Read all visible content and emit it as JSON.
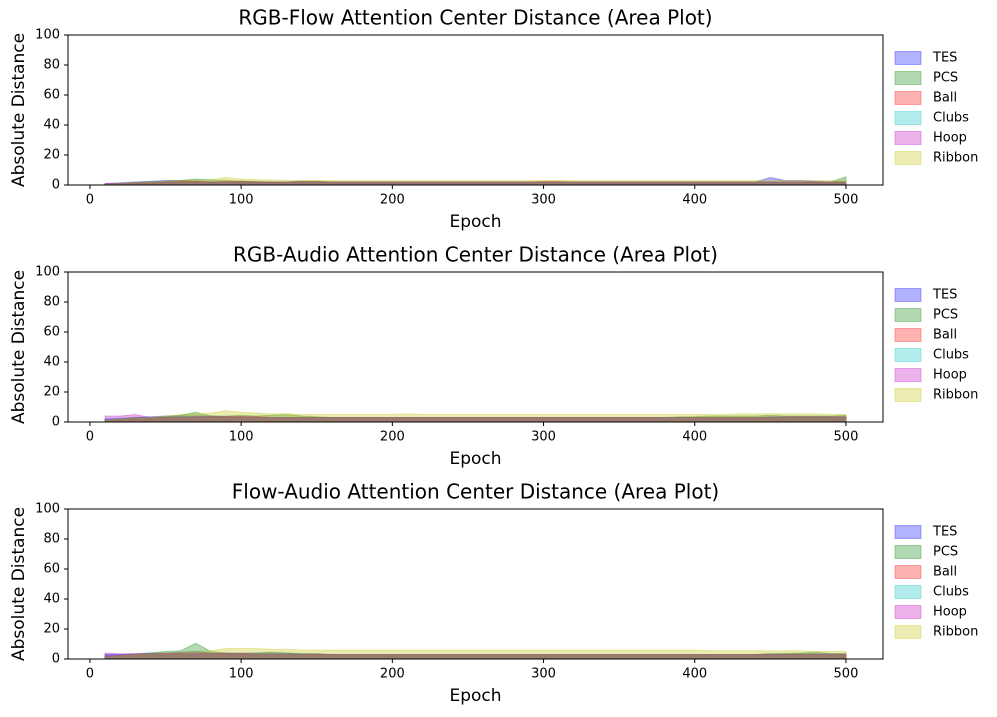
{
  "chart_data": [
    {
      "type": "area",
      "title": "RGB-Flow Attention Center Distance (Area Plot)",
      "x_label": "Epoch",
      "y_label": "Absolute Distance",
      "x": [
        10,
        20,
        30,
        40,
        50,
        60,
        70,
        80,
        90,
        100,
        110,
        120,
        130,
        140,
        150,
        160,
        170,
        180,
        190,
        200,
        210,
        220,
        230,
        240,
        250,
        260,
        270,
        280,
        290,
        300,
        310,
        320,
        330,
        340,
        350,
        360,
        370,
        380,
        390,
        400,
        410,
        420,
        430,
        440,
        450,
        460,
        470,
        480,
        490,
        500
      ],
      "xlim": [
        -14.5,
        524.5
      ],
      "xticks": [
        0,
        100,
        200,
        300,
        400,
        500
      ],
      "ylim": [
        0,
        100
      ],
      "yticks": [
        0,
        20,
        40,
        60,
        80,
        100
      ],
      "legend": "right",
      "series": [
        {
          "name": "TES",
          "color": "#0000ff",
          "values": [
            1,
            1.5,
            2,
            2.5,
            3,
            3,
            2.5,
            2,
            2,
            2.5,
            2,
            2,
            2,
            2.5,
            2,
            2,
            2,
            2,
            2,
            2,
            2,
            2,
            2,
            2,
            2,
            2,
            2,
            2,
            2,
            2,
            2,
            2,
            2,
            2,
            2,
            2,
            2,
            2,
            2,
            2,
            2,
            2,
            2,
            2,
            5,
            3,
            3,
            2.5,
            2,
            2
          ]
        },
        {
          "name": "PCS",
          "color": "#008000",
          "values": [
            0.5,
            1,
            1.5,
            2,
            2.5,
            3,
            4,
            3.5,
            3,
            2.5,
            2.5,
            2,
            2,
            2.5,
            2.5,
            2,
            2,
            2,
            2,
            2,
            2,
            2,
            2,
            2,
            2,
            2,
            2,
            2,
            2,
            2,
            2,
            2,
            2,
            2,
            2,
            2,
            2,
            2,
            2,
            2,
            2,
            2,
            2,
            2,
            2,
            2,
            2,
            2,
            2,
            5.5
          ]
        },
        {
          "name": "Ball",
          "color": "#ff0000",
          "values": [
            0.5,
            1,
            1.5,
            2,
            2,
            2.5,
            2.5,
            2,
            2.5,
            2.5,
            2,
            2,
            2,
            2,
            2.5,
            2,
            2,
            2,
            2,
            2,
            2,
            2,
            2,
            2,
            2,
            2,
            2,
            2,
            2,
            2.5,
            2.5,
            2,
            2,
            2,
            2,
            2,
            2,
            2,
            2,
            2,
            2,
            2,
            2,
            2,
            2,
            2,
            2,
            2,
            2,
            2
          ]
        },
        {
          "name": "Clubs",
          "color": "#00bfbf",
          "values": [
            0.5,
            1,
            1.5,
            2,
            2,
            2,
            2,
            2,
            2,
            2,
            2,
            2,
            2,
            2,
            2,
            2,
            2,
            2,
            2,
            2,
            2,
            2,
            2,
            2,
            2,
            2,
            2,
            2,
            2,
            2,
            2,
            2,
            2,
            2,
            2,
            2,
            2,
            2,
            2,
            2,
            2,
            2,
            2,
            2,
            2,
            2,
            2,
            2,
            2,
            2
          ]
        },
        {
          "name": "Hoop",
          "color": "#bf00bf",
          "values": [
            1,
            1,
            1.5,
            1.5,
            2,
            2,
            2,
            2,
            2,
            2,
            2,
            2,
            2,
            2,
            2,
            2,
            2,
            2,
            2,
            2,
            2,
            2,
            2,
            2,
            2,
            2,
            2,
            2,
            2,
            2,
            2,
            2,
            2,
            2,
            2,
            2,
            2,
            2,
            2,
            2,
            2,
            2,
            2,
            2,
            2,
            2,
            2,
            2,
            2,
            2
          ]
        },
        {
          "name": "Ribbon",
          "color": "#bfbf00",
          "values": [
            0.5,
            1,
            1.5,
            2,
            2.5,
            3,
            3,
            3.5,
            5,
            4,
            3.5,
            3.5,
            3,
            3,
            3,
            3,
            3,
            3,
            3,
            3,
            3,
            3,
            3,
            3,
            3,
            3,
            3,
            3,
            3,
            3,
            3,
            3,
            3,
            3,
            3,
            3,
            3,
            3,
            3,
            3,
            3,
            3,
            3,
            3,
            3,
            3,
            3,
            3,
            3,
            3
          ]
        }
      ]
    },
    {
      "type": "area",
      "title": "RGB-Audio Attention Center Distance (Area Plot)",
      "x_label": "Epoch",
      "y_label": "Absolute Distance",
      "x": [
        10,
        20,
        30,
        40,
        50,
        60,
        70,
        80,
        90,
        100,
        110,
        120,
        130,
        140,
        150,
        160,
        170,
        180,
        190,
        200,
        210,
        220,
        230,
        240,
        250,
        260,
        270,
        280,
        290,
        300,
        310,
        320,
        330,
        340,
        350,
        360,
        370,
        380,
        390,
        400,
        410,
        420,
        430,
        440,
        450,
        460,
        470,
        480,
        490,
        500
      ],
      "xlim": [
        -14.5,
        524.5
      ],
      "xticks": [
        0,
        100,
        200,
        300,
        400,
        500
      ],
      "ylim": [
        0,
        100
      ],
      "yticks": [
        0,
        20,
        40,
        60,
        80,
        100
      ],
      "legend": "right",
      "series": [
        {
          "name": "TES",
          "color": "#0000ff",
          "values": [
            2,
            2.5,
            3,
            3.5,
            4,
            4,
            4,
            4,
            3.5,
            3.5,
            3,
            3,
            3,
            3,
            3,
            3,
            3,
            3,
            3,
            3,
            3,
            3,
            3,
            3,
            3,
            3,
            3,
            3,
            3,
            3,
            3,
            3,
            3,
            3,
            3,
            3,
            3,
            3,
            3,
            3,
            3,
            3,
            3,
            3,
            3.5,
            3.5,
            3.5,
            3.5,
            3.5,
            3.5
          ]
        },
        {
          "name": "PCS",
          "color": "#008000",
          "values": [
            1,
            2,
            3,
            3,
            3.5,
            4.5,
            6.5,
            4,
            4,
            4.5,
            4,
            4.5,
            5,
            4,
            3.5,
            3,
            3,
            3,
            3,
            3,
            3,
            3,
            3,
            3,
            3,
            3,
            3,
            3,
            3,
            3,
            3,
            3,
            3,
            3,
            3,
            3,
            3,
            3,
            3.5,
            3.5,
            4,
            4,
            4,
            4,
            4.5,
            4,
            4,
            4,
            4,
            4.5
          ]
        },
        {
          "name": "Ball",
          "color": "#ff0000",
          "values": [
            1,
            1.5,
            2,
            2.5,
            3,
            3,
            3,
            3.5,
            3.5,
            3.5,
            3.5,
            3,
            3,
            3,
            3,
            3,
            3,
            3,
            3,
            3,
            3,
            3,
            3,
            3,
            3,
            3,
            3,
            3,
            3,
            3,
            3,
            3,
            3,
            3,
            3,
            3,
            3,
            3,
            3,
            3,
            3,
            3,
            3,
            3,
            3,
            3,
            3,
            3,
            3,
            3
          ]
        },
        {
          "name": "Clubs",
          "color": "#00bfbf",
          "values": [
            2,
            2,
            2.5,
            3,
            3,
            3,
            3,
            3,
            3,
            3,
            3,
            3,
            3,
            3,
            3,
            3,
            3,
            3,
            3,
            3,
            3,
            3,
            3,
            3,
            3,
            3,
            3,
            3,
            3,
            3,
            3,
            3,
            3,
            3,
            3,
            3,
            3,
            3,
            3,
            3,
            3,
            3,
            3,
            3,
            3,
            3,
            3,
            3,
            3,
            3
          ]
        },
        {
          "name": "Hoop",
          "color": "#bf00bf",
          "values": [
            4,
            4,
            5,
            3,
            3,
            3,
            3.5,
            3.5,
            3.5,
            3.5,
            3.5,
            3,
            3,
            3,
            3,
            3,
            3,
            3,
            3,
            3,
            3,
            3,
            3,
            3,
            3,
            3,
            3,
            3,
            3,
            3,
            3,
            3,
            3,
            3,
            3,
            3,
            3,
            3,
            3,
            3,
            3,
            3,
            3,
            3,
            3,
            3.5,
            3.5,
            3.5,
            3.5,
            3.5
          ]
        },
        {
          "name": "Ribbon",
          "color": "#bfbf00",
          "values": [
            1,
            2,
            2.5,
            3,
            4,
            5,
            5.5,
            6,
            7.5,
            6.5,
            6,
            5.5,
            5.5,
            5,
            5,
            5,
            5,
            5,
            5,
            5,
            5.5,
            5,
            5,
            5,
            5,
            5,
            5,
            5,
            5,
            5,
            5,
            5,
            5,
            5,
            5,
            5,
            5,
            5,
            5,
            5,
            5,
            5,
            5.5,
            5.5,
            5.5,
            5.5,
            5.5,
            5.5,
            5,
            5
          ]
        }
      ]
    },
    {
      "type": "area",
      "title": "Flow-Audio Attention Center Distance (Area Plot)",
      "x_label": "Epoch",
      "y_label": "Absolute Distance",
      "x": [
        10,
        20,
        30,
        40,
        50,
        60,
        70,
        80,
        90,
        100,
        110,
        120,
        130,
        140,
        150,
        160,
        170,
        180,
        190,
        200,
        210,
        220,
        230,
        240,
        250,
        260,
        270,
        280,
        290,
        300,
        310,
        320,
        330,
        340,
        350,
        360,
        370,
        380,
        390,
        400,
        410,
        420,
        430,
        440,
        450,
        460,
        470,
        480,
        490,
        500
      ],
      "xlim": [
        -14.5,
        524.5
      ],
      "xticks": [
        0,
        100,
        200,
        300,
        400,
        500
      ],
      "ylim": [
        0,
        100
      ],
      "yticks": [
        0,
        20,
        40,
        60,
        80,
        100
      ],
      "legend": "right",
      "series": [
        {
          "name": "TES",
          "color": "#0000ff",
          "values": [
            3,
            3,
            3.5,
            4,
            4,
            4.5,
            5,
            4,
            4,
            4,
            4,
            4,
            4,
            3.5,
            3.5,
            3,
            3,
            3,
            3,
            3,
            3,
            3,
            3,
            3,
            3,
            3,
            3,
            3,
            3,
            3,
            3,
            3,
            3,
            3,
            3,
            3,
            3,
            3,
            3,
            3,
            3,
            3,
            3,
            3,
            3.5,
            3.5,
            3.5,
            3.5,
            3.5,
            3.5
          ]
        },
        {
          "name": "PCS",
          "color": "#008000",
          "values": [
            1,
            2,
            3,
            4,
            5,
            5.5,
            10.5,
            5,
            4,
            3.5,
            4,
            4.5,
            4,
            3.5,
            3.5,
            3,
            3,
            3,
            3,
            3,
            3,
            3,
            3,
            3,
            3,
            3,
            3,
            3,
            3,
            3,
            3,
            3,
            3,
            3,
            3,
            3,
            3,
            3,
            3,
            3,
            3,
            3,
            3,
            3,
            3.5,
            3.5,
            4,
            4.5,
            3.5,
            3.5
          ]
        },
        {
          "name": "Ball",
          "color": "#ff0000",
          "values": [
            2,
            2.5,
            3,
            3,
            3.5,
            3.5,
            3.5,
            3.5,
            3.5,
            3.5,
            3,
            3,
            3,
            3,
            3,
            3,
            3,
            3,
            3,
            3,
            3,
            3,
            3,
            3,
            3,
            3,
            3,
            3,
            3,
            3,
            3,
            3,
            3,
            3,
            3,
            3,
            3,
            3,
            3,
            3,
            3,
            3,
            3,
            3,
            3,
            3,
            3,
            3,
            3,
            3
          ]
        },
        {
          "name": "Clubs",
          "color": "#00bfbf",
          "values": [
            2.5,
            3,
            3,
            3,
            3,
            3,
            3,
            3,
            3,
            3,
            3,
            3,
            3,
            3,
            3,
            3,
            3,
            3,
            3,
            3,
            3,
            3,
            3,
            3,
            3,
            3,
            3,
            3,
            3,
            3,
            3,
            3,
            3,
            3,
            3,
            3,
            3,
            3,
            3,
            3,
            3,
            3,
            3,
            3,
            3,
            3,
            3,
            3,
            3,
            3
          ]
        },
        {
          "name": "Hoop",
          "color": "#bf00bf",
          "values": [
            4,
            3.5,
            3.5,
            3.5,
            3.5,
            3.5,
            3.5,
            3.5,
            3.5,
            3.5,
            3,
            3,
            3,
            3,
            3,
            3,
            3,
            3,
            3,
            3,
            3,
            3,
            3,
            3,
            3,
            3,
            3,
            3,
            3,
            3,
            3,
            3,
            3,
            3,
            3,
            3,
            3,
            3,
            3,
            3,
            3,
            3,
            3,
            3,
            3,
            3,
            3,
            3,
            3,
            3
          ]
        },
        {
          "name": "Ribbon",
          "color": "#bfbf00",
          "values": [
            1,
            2,
            3,
            3.5,
            4,
            4.5,
            5,
            5.5,
            7,
            7,
            7,
            6.5,
            6.5,
            6,
            6,
            6,
            6,
            6,
            6,
            6,
            6,
            6,
            6,
            6,
            6,
            6,
            6,
            6,
            6,
            6,
            6,
            6,
            6,
            6,
            6,
            6,
            6,
            6,
            6,
            6,
            5.5,
            5.5,
            5.5,
            5.5,
            5.5,
            5.5,
            5.5,
            5,
            5,
            5
          ]
        }
      ]
    }
  ]
}
